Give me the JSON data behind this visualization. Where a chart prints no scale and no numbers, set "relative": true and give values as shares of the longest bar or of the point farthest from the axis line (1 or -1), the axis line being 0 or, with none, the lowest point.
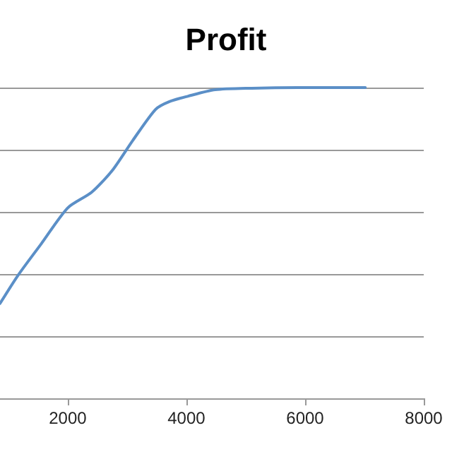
{
  "chart_data": {
    "type": "line",
    "title": "Profit",
    "relative": true,
    "x": [
      858,
      1166,
      1552,
      2000,
      2402,
      2749,
      3096,
      3481,
      3713,
      4022,
      4485,
      5100,
      5873,
      7015
    ],
    "series": [
      {
        "color": "#5b8fc7",
        "values": [
          0.305,
          0.397,
          0.497,
          0.613,
          0.663,
          0.733,
          0.83,
          0.93,
          0.955,
          0.972,
          0.993,
          0.998,
          1,
          1
        ]
      }
    ],
    "xlim": [
      858,
      8000
    ],
    "xticks": [
      2000,
      4000,
      6000,
      8000
    ],
    "grid": "y",
    "marker": "none",
    "line_style": "solid"
  }
}
